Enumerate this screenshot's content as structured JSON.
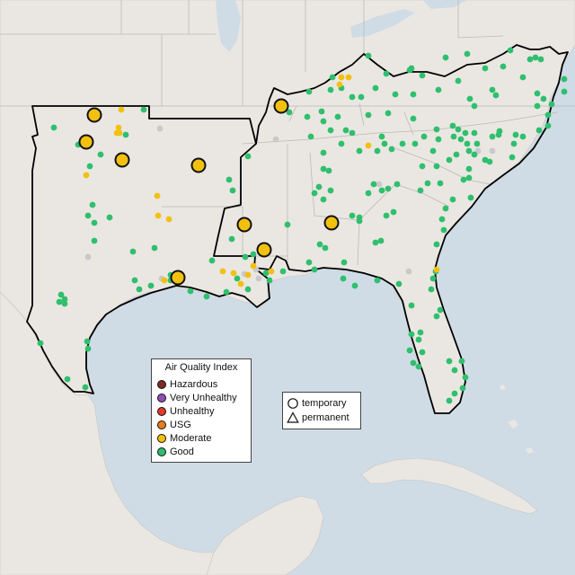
{
  "legend": {
    "title": "Air Quality Index",
    "categories": [
      {
        "label": "Hazardous",
        "color": "#7e2b22"
      },
      {
        "label": "Very Unhealthy",
        "color": "#8f4fb3"
      },
      {
        "label": "Unhealthy",
        "color": "#e23a25"
      },
      {
        "label": "USG",
        "color": "#e67c1c"
      },
      {
        "label": "Moderate",
        "color": "#f2c00f"
      },
      {
        "label": "Good",
        "color": "#2fbf6d"
      }
    ]
  },
  "monitor_types": {
    "temporary": "temporary",
    "permanent": "permanent"
  },
  "colors": {
    "land": "#eae7e3",
    "water": "#cfdce6",
    "border": "#b9b5b0",
    "region_outline": "#000000",
    "no_data": "#c9c9c9"
  }
}
